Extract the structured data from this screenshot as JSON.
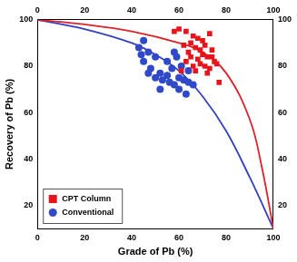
{
  "chart_data": {
    "type": "scatter",
    "x_label": "Grade of Pb (%)",
    "y_label": "Recovery of Pb (%)",
    "xlim": [
      0,
      100
    ],
    "xticks": [
      0,
      20,
      40,
      60,
      80,
      100
    ],
    "ylim": [
      10,
      100
    ],
    "yticks": [
      20,
      40,
      60,
      80,
      100
    ],
    "grid": false,
    "legend": "lower left",
    "series": [
      {
        "name": "CPT Column",
        "color": "#e8141b",
        "marker": "square",
        "x": [
          60,
          63,
          65,
          66,
          68,
          70,
          73,
          62,
          64,
          67,
          69,
          71,
          74,
          65,
          68,
          70,
          72,
          75,
          63,
          66,
          69,
          71,
          73,
          76,
          61,
          67,
          72,
          77,
          58,
          74
        ],
        "values": [
          96,
          95,
          90,
          93,
          92,
          91,
          94,
          89,
          86,
          88,
          87,
          89,
          87,
          84,
          83,
          85,
          84,
          82,
          82,
          80,
          81,
          80,
          79,
          81,
          78,
          78,
          77,
          73,
          95,
          84
        ]
      },
      {
        "name": "Conventional",
        "color": "#2f49c8",
        "marker": "circle",
        "x": [
          45,
          43,
          47,
          50,
          45,
          48,
          52,
          55,
          47,
          50,
          53,
          56,
          58,
          60,
          62,
          64,
          66,
          60,
          63,
          58,
          55,
          57,
          61,
          64,
          52,
          59,
          44
        ],
        "values": [
          91,
          88,
          86,
          84,
          82,
          79,
          77,
          76,
          77,
          75,
          74,
          73,
          72,
          75,
          74,
          73,
          72,
          70,
          68,
          86,
          82,
          79,
          80,
          78,
          70,
          84,
          85
        ]
      },
      {
        "type": "line",
        "color": "#e0202a",
        "x": [
          0,
          20,
          40,
          60,
          70,
          80,
          90,
          95,
          100
        ],
        "values": [
          100,
          98,
          95,
          90,
          86,
          77,
          57,
          37,
          10
        ]
      },
      {
        "type": "line",
        "color": "#3040c0",
        "x": [
          0,
          20,
          40,
          50,
          60,
          70,
          80,
          90,
          100
        ],
        "values": [
          100,
          96,
          90,
          85,
          78,
          67,
          52,
          32,
          10
        ]
      }
    ]
  }
}
